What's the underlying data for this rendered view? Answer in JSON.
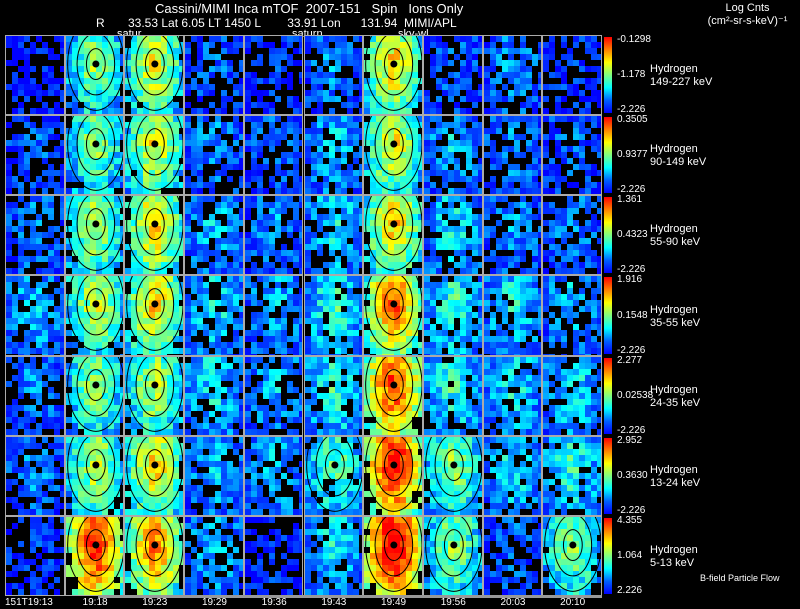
{
  "header": {
    "title": "Cassini/MIMI Inca mTOF  2007-151   Spin   Ions Only",
    "subtitle": "R       33.53 Lat 6.05 LT 1450 L        33.91 Lon      131.94  MIMI/APL",
    "unit_line1": "Log Cnts",
    "unit_line2": "(cm²-sr-s-keV)⁻¹",
    "labels": [
      "satur",
      "saturn",
      "sky-wl"
    ]
  },
  "footnote": "B-field Particle Flow",
  "chart_data": {
    "type": "heatmap",
    "title": "Cassini/MIMI Inca mTOF  2007-151   Spin   Ions Only",
    "xlabel": "",
    "ylabel": "",
    "times": [
      "151T19:13",
      "19:18",
      "19:23",
      "19:29",
      "19:36",
      "19:43",
      "19:49",
      "19:56",
      "20:03",
      "20:10"
    ],
    "columns": 10,
    "rows": [
      {
        "species": "Hydrogen",
        "energy": "149-227 keV",
        "cmax": "-0.1298",
        "cmid": "-1.178",
        "cmin": "-2.226",
        "intensity": [
          0.05,
          0.45,
          0.55,
          0.15,
          0.1,
          0.2,
          0.6,
          0.15,
          0.2,
          0.1
        ]
      },
      {
        "species": "Hydrogen",
        "energy": "90-149 keV",
        "cmax": "0.3505",
        "cmid": "0.9377",
        "cmin": "-2.226",
        "intensity": [
          0.15,
          0.45,
          0.55,
          0.2,
          0.15,
          0.25,
          0.55,
          0.25,
          0.2,
          0.15
        ]
      },
      {
        "species": "Hydrogen",
        "energy": "55-90 keV",
        "cmax": "1.361",
        "cmid": "0.4323",
        "cmin": "-2.226",
        "intensity": [
          0.2,
          0.5,
          0.6,
          0.25,
          0.2,
          0.3,
          0.6,
          0.3,
          0.2,
          0.2
        ]
      },
      {
        "species": "Hydrogen",
        "energy": "35-55 keV",
        "cmax": "1.916",
        "cmid": "0.1548",
        "cmin": "-2.226",
        "intensity": [
          0.25,
          0.5,
          0.6,
          0.3,
          0.25,
          0.35,
          0.75,
          0.35,
          0.3,
          0.25
        ]
      },
      {
        "species": "Hydrogen",
        "energy": "24-35 keV",
        "cmax": "2.277",
        "cmid": "0.02538",
        "cmin": "-2.226",
        "intensity": [
          0.2,
          0.45,
          0.5,
          0.3,
          0.25,
          0.35,
          0.8,
          0.35,
          0.3,
          0.3
        ]
      },
      {
        "species": "Hydrogen",
        "energy": "13-24 keV",
        "cmax": "2.952",
        "cmid": "0.3630",
        "cmin": "-2.226",
        "intensity": [
          0.2,
          0.5,
          0.6,
          0.25,
          0.25,
          0.4,
          0.9,
          0.45,
          0.3,
          0.35
        ]
      },
      {
        "species": "Hydrogen",
        "energy": "5-13 keV",
        "cmax": "4.355",
        "cmid": "1.064",
        "cmin": "2.226",
        "intensity": [
          0.1,
          0.85,
          0.7,
          0.25,
          0.1,
          0.3,
          0.95,
          0.45,
          0.15,
          0.45
        ]
      }
    ]
  }
}
